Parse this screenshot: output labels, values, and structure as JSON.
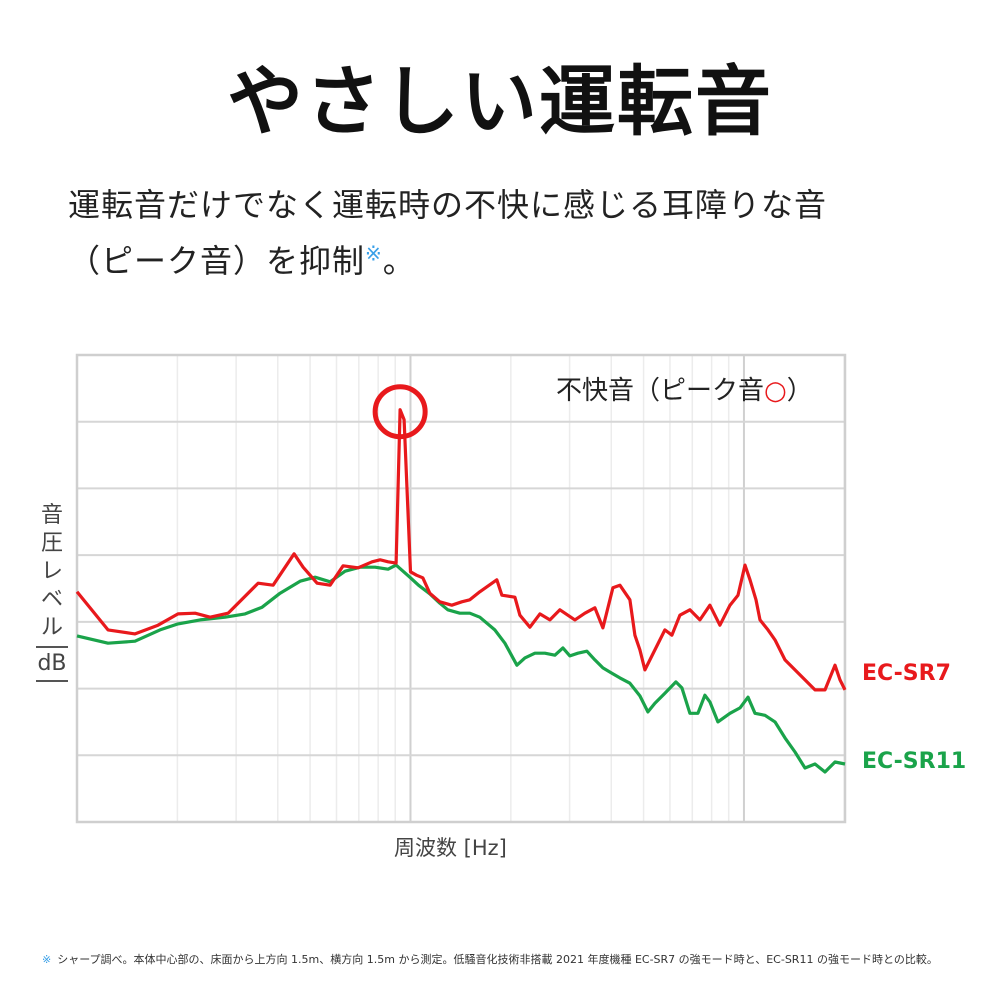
{
  "title": "やさしい運転音",
  "subtitle": {
    "line1": "運転音だけでなく運転時の不快に感じる耳障りな音",
    "line2": "（ピーク音）を抑制",
    "note_mark": "※",
    "line2_end": "。"
  },
  "footnote": {
    "mark": "※",
    "text": "シャープ調べ。本体中心部の、床面から上方向 1.5m、横方向 1.5m から測定。低騒音化技術非搭載 2021 年度機種 EC-SR7 の強モード時と、EC-SR11 の強モード時との比較。"
  },
  "colors": {
    "red": "#e8191c",
    "green": "#1aa34a",
    "note": "#3aa0e8"
  },
  "chart_data": {
    "type": "line",
    "xlabel": "周波数 [Hz]",
    "ylabel_chars": [
      "音",
      "圧",
      "レ",
      "ベ",
      "ル"
    ],
    "ylabel_unit": "dB",
    "x_scale": "log",
    "x_units_note": "no tick labels printed; x in decades from left edge, y in gridline divisions",
    "xlim": [
      0,
      2.303
    ],
    "ylim": [
      0,
      7
    ],
    "grid": true,
    "annotation": {
      "text": "不快音（ピーク音",
      "symbol": "○",
      "close": "）",
      "target_series": "EC-SR7",
      "x": 0.969,
      "y": 6.18
    },
    "series": [
      {
        "name": "EC-SR7",
        "color": "#e8191c",
        "x": [
          0,
          0.093,
          0.174,
          0.243,
          0.303,
          0.354,
          0.399,
          0.453,
          0.543,
          0.588,
          0.651,
          0.678,
          0.72,
          0.759,
          0.798,
          0.843,
          0.885,
          0.909,
          0.933,
          0.957,
          0.969,
          0.981,
          1.0,
          1.018,
          1.037,
          1.058,
          1.088,
          1.124,
          1.154,
          1.178,
          1.208,
          1.259,
          1.274,
          1.313,
          1.328,
          1.358,
          1.388,
          1.418,
          1.448,
          1.493,
          1.523,
          1.553,
          1.577,
          1.607,
          1.628,
          1.658,
          1.673,
          1.688,
          1.703,
          1.733,
          1.748,
          1.763,
          1.784,
          1.808,
          1.838,
          1.868,
          1.898,
          1.928,
          1.958,
          1.982,
          2.003,
          2.018,
          2.036,
          2.048,
          2.072,
          2.093,
          2.123,
          2.153,
          2.183,
          2.213,
          2.243,
          2.273,
          2.288,
          2.303
        ],
        "y": [
          3.45,
          2.88,
          2.82,
          2.95,
          3.12,
          3.13,
          3.07,
          3.13,
          3.58,
          3.55,
          4.02,
          3.82,
          3.58,
          3.55,
          3.84,
          3.81,
          3.9,
          3.93,
          3.9,
          3.88,
          6.18,
          6.03,
          3.75,
          3.7,
          3.66,
          3.43,
          3.3,
          3.25,
          3.3,
          3.33,
          3.45,
          3.63,
          3.4,
          3.37,
          3.1,
          2.92,
          3.12,
          3.03,
          3.18,
          3.03,
          3.13,
          3.21,
          2.91,
          3.51,
          3.55,
          3.33,
          2.8,
          2.58,
          2.28,
          2.58,
          2.73,
          2.88,
          2.8,
          3.1,
          3.18,
          3.03,
          3.25,
          2.95,
          3.25,
          3.4,
          3.85,
          3.63,
          3.33,
          3.03,
          2.88,
          2.73,
          2.43,
          2.28,
          2.13,
          1.98,
          1.98,
          2.35,
          2.13,
          1.98
        ]
      },
      {
        "name": "EC-SR11",
        "color": "#1aa34a",
        "x": [
          0,
          0.093,
          0.174,
          0.249,
          0.303,
          0.369,
          0.444,
          0.504,
          0.555,
          0.609,
          0.669,
          0.714,
          0.759,
          0.804,
          0.849,
          0.894,
          0.933,
          0.957,
          1.0,
          1.024,
          1.058,
          1.088,
          1.112,
          1.148,
          1.178,
          1.208,
          1.253,
          1.283,
          1.319,
          1.343,
          1.373,
          1.403,
          1.433,
          1.457,
          1.478,
          1.502,
          1.529,
          1.553,
          1.577,
          1.604,
          1.628,
          1.658,
          1.688,
          1.712,
          1.733,
          1.763,
          1.796,
          1.814,
          1.838,
          1.862,
          1.883,
          1.898,
          1.922,
          1.958,
          1.988,
          2.012,
          2.033,
          2.063,
          2.093,
          2.123,
          2.153,
          2.183,
          2.213,
          2.243,
          2.273,
          2.303
        ],
        "y": [
          2.79,
          2.68,
          2.71,
          2.88,
          2.97,
          3.03,
          3.07,
          3.12,
          3.22,
          3.43,
          3.61,
          3.67,
          3.6,
          3.76,
          3.82,
          3.82,
          3.79,
          3.85,
          3.66,
          3.55,
          3.42,
          3.28,
          3.18,
          3.13,
          3.13,
          3.07,
          2.88,
          2.68,
          2.35,
          2.46,
          2.53,
          2.53,
          2.5,
          2.61,
          2.49,
          2.53,
          2.56,
          2.43,
          2.31,
          2.23,
          2.16,
          2.08,
          1.89,
          1.65,
          1.78,
          1.93,
          2.1,
          2.01,
          1.63,
          1.63,
          1.9,
          1.8,
          1.5,
          1.63,
          1.71,
          1.87,
          1.63,
          1.6,
          1.5,
          1.26,
          1.05,
          0.81,
          0.87,
          0.75,
          0.9,
          0.87
        ]
      }
    ]
  }
}
